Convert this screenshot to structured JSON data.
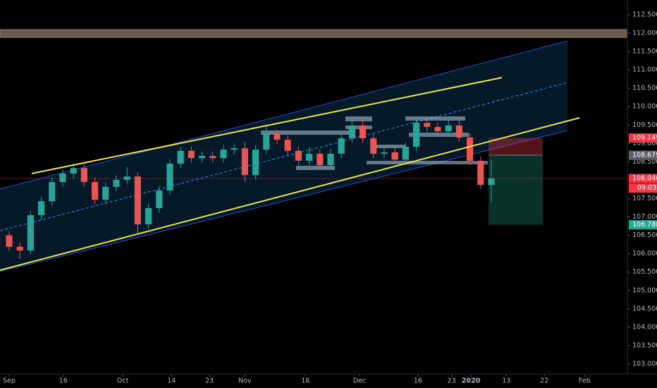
{
  "chart_data": {
    "type": "candlestick",
    "xlim": [
      -1.71,
      115.4
    ],
    "ylim": [
      102.731,
      112.902
    ],
    "xticks": [
      {
        "value": 0,
        "label": "Sep"
      },
      {
        "value": 10.1,
        "label": "16"
      },
      {
        "value": 21.2,
        "label": "Oct"
      },
      {
        "value": 30.3,
        "label": "14"
      },
      {
        "value": 37.4,
        "label": "23"
      },
      {
        "value": 44,
        "label": "Nov"
      },
      {
        "value": 55.3,
        "label": "18"
      },
      {
        "value": 65.4,
        "label": "Dec"
      },
      {
        "value": 76.3,
        "label": "16"
      },
      {
        "value": 82.6,
        "label": "23"
      },
      {
        "value": 86.2,
        "label": "2020"
      },
      {
        "value": 92.8,
        "label": "13"
      },
      {
        "value": 99.9,
        "label": "22"
      },
      {
        "value": 107.4,
        "label": "Feb"
      }
    ],
    "yticks": [
      {
        "value": 103,
        "label": "103.000"
      },
      {
        "value": 103.5,
        "label": "103.500"
      },
      {
        "value": 104,
        "label": "104.000"
      },
      {
        "value": 104.5,
        "label": "104.500"
      },
      {
        "value": 105,
        "label": "105.000"
      },
      {
        "value": 105.5,
        "label": "105.500"
      },
      {
        "value": 106,
        "label": "106.000"
      },
      {
        "value": 106.5,
        "label": "106.500"
      },
      {
        "value": 107,
        "label": "107.000"
      },
      {
        "value": 107.5,
        "label": "107.500"
      },
      {
        "value": 108,
        "label": "108.000"
      },
      {
        "value": 108.5,
        "label": "108.500"
      },
      {
        "value": 109,
        "label": "109.000"
      },
      {
        "value": 109.5,
        "label": "109.500"
      },
      {
        "value": 110,
        "label": "110.000"
      },
      {
        "value": 110.5,
        "label": "110.500"
      },
      {
        "value": 111,
        "label": "111.000"
      },
      {
        "value": 111.5,
        "label": "111.500"
      },
      {
        "value": 112,
        "label": "112.000"
      },
      {
        "value": 112.5,
        "label": "112.500"
      }
    ],
    "up_color": "#26a69a",
    "down_color": "#ef5350",
    "x": [
      0,
      2,
      4,
      6,
      8,
      10,
      12,
      14,
      16,
      18,
      20,
      22,
      24,
      26,
      28,
      30,
      32,
      34,
      36,
      38,
      40,
      42,
      44,
      46,
      48,
      50,
      52,
      54,
      56,
      58,
      60,
      62,
      64,
      66,
      68,
      70,
      72,
      74,
      76,
      78,
      80,
      82,
      84,
      86,
      88,
      90
    ],
    "open": [
      106.5,
      106.19,
      106.09,
      107.05,
      107.43,
      107.95,
      108.18,
      108.33,
      107.95,
      107.47,
      107.82,
      108.01,
      108.1,
      106.8,
      107.24,
      107.72,
      108.45,
      108.8,
      108.6,
      108.66,
      108.6,
      108.83,
      108.87,
      108.14,
      108.83,
      109.26,
      109.1,
      108.8,
      108.53,
      108.72,
      108.41,
      108.72,
      109.14,
      109.49,
      109.14,
      108.72,
      108.76,
      108.56,
      108.91,
      109.56,
      109.45,
      109.33,
      109.49,
      109.16,
      108.53,
      107.87
    ],
    "high": [
      106.62,
      106.31,
      107.17,
      107.55,
      108.07,
      108.3,
      108.45,
      108.45,
      108.07,
      107.94,
      108.13,
      108.35,
      108.22,
      107.36,
      107.84,
      108.57,
      108.92,
      108.92,
      108.78,
      108.78,
      108.95,
      109.0,
      109.05,
      108.95,
      109.45,
      109.38,
      109.22,
      108.92,
      108.9,
      108.84,
      108.84,
      109.26,
      109.7,
      109.65,
      109.26,
      108.88,
      108.88,
      109.03,
      109.68,
      109.68,
      109.57,
      109.65,
      109.61,
      109.28,
      108.65,
      108.55
    ],
    "low": [
      106.07,
      105.85,
      105.97,
      106.93,
      107.31,
      107.83,
      108.06,
      107.83,
      107.35,
      107.35,
      107.7,
      107.89,
      106.55,
      106.68,
      107.12,
      107.6,
      108.33,
      108.48,
      108.48,
      108.48,
      108.48,
      108.71,
      107.95,
      108.02,
      108.71,
      108.98,
      108.68,
      108.41,
      108.41,
      108.29,
      108.29,
      108.6,
      109.02,
      109.02,
      108.6,
      108.6,
      108.44,
      108.44,
      108.79,
      109.33,
      109.21,
      109.21,
      109.04,
      108.41,
      107.75,
      107.4
    ],
    "close": [
      106.19,
      106.09,
      107.05,
      107.43,
      107.95,
      108.18,
      108.33,
      107.95,
      107.47,
      107.82,
      108.01,
      108.1,
      106.8,
      107.24,
      107.72,
      108.45,
      108.8,
      108.6,
      108.66,
      108.6,
      108.83,
      108.87,
      108.14,
      108.83,
      109.26,
      109.1,
      108.8,
      108.53,
      108.72,
      108.41,
      108.72,
      109.14,
      109.49,
      109.14,
      108.72,
      108.76,
      108.56,
      108.91,
      109.56,
      109.45,
      109.33,
      109.49,
      109.16,
      108.53,
      107.87,
      108.05
    ],
    "markers": [
      {
        "value": 109.149,
        "color": "#f23645"
      },
      {
        "value": 108.679,
        "color": "#5d606b"
      },
      {
        "value": 108.046,
        "color": "#f23645"
      },
      {
        "value": 106.788,
        "color": "#22ab94"
      }
    ],
    "countdown": "09:03"
  }
}
